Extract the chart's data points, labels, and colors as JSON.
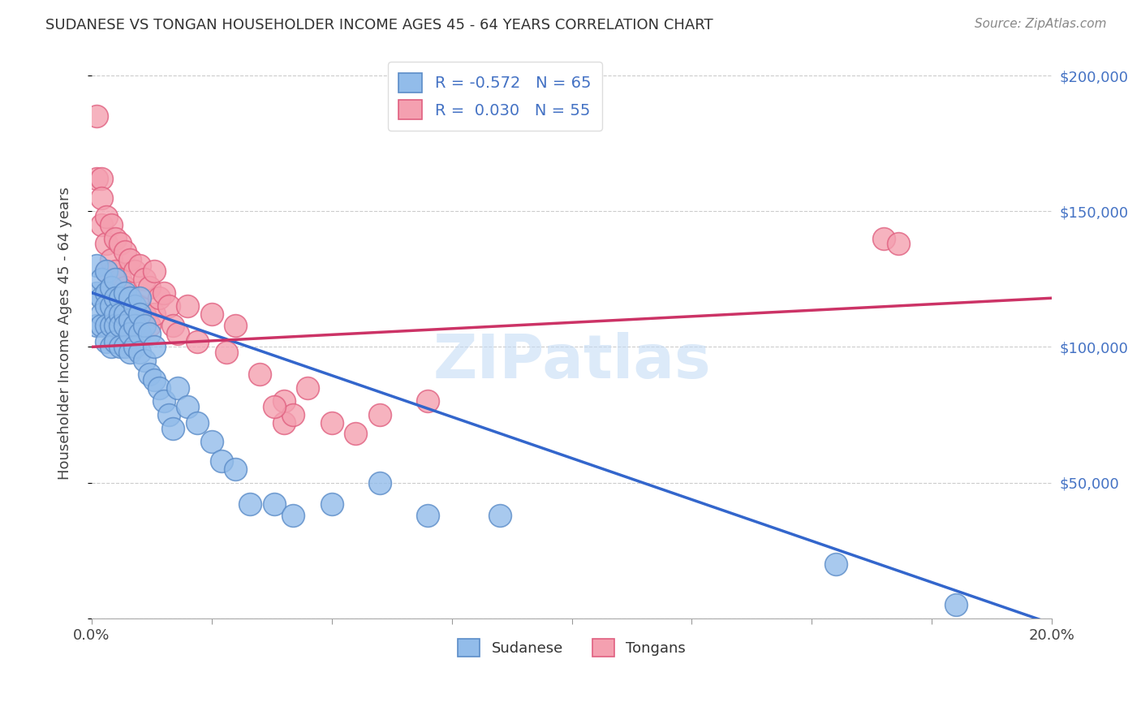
{
  "title": "SUDANESE VS TONGAN HOUSEHOLDER INCOME AGES 45 - 64 YEARS CORRELATION CHART",
  "source": "Source: ZipAtlas.com",
  "ylabel": "Householder Income Ages 45 - 64 years",
  "xlim": [
    0,
    0.2
  ],
  "ylim": [
    0,
    210000
  ],
  "yticks": [
    0,
    50000,
    100000,
    150000,
    200000
  ],
  "xticks": [
    0.0,
    0.025,
    0.05,
    0.075,
    0.1,
    0.125,
    0.15,
    0.175,
    0.2
  ],
  "xtick_labels": [
    "0.0%",
    "",
    "",
    "",
    "",
    "",
    "",
    "",
    "20.0%"
  ],
  "right_ytick_labels": [
    "$50,000",
    "$100,000",
    "$150,000",
    "$200,000"
  ],
  "right_ytick_vals": [
    50000,
    100000,
    150000,
    200000
  ],
  "watermark": "ZIPatlas",
  "sudanese_color": "#92BCEA",
  "tongan_color": "#F4A0B0",
  "sudanese_edge": "#5B8CC8",
  "tongan_edge": "#E06080",
  "trend_blue": "#3366CC",
  "trend_pink": "#CC3366",
  "sudanese_x": [
    0.001,
    0.001,
    0.001,
    0.002,
    0.002,
    0.002,
    0.002,
    0.003,
    0.003,
    0.003,
    0.003,
    0.003,
    0.004,
    0.004,
    0.004,
    0.004,
    0.005,
    0.005,
    0.005,
    0.005,
    0.005,
    0.006,
    0.006,
    0.006,
    0.006,
    0.007,
    0.007,
    0.007,
    0.007,
    0.008,
    0.008,
    0.008,
    0.008,
    0.009,
    0.009,
    0.009,
    0.01,
    0.01,
    0.01,
    0.01,
    0.011,
    0.011,
    0.012,
    0.012,
    0.013,
    0.013,
    0.014,
    0.015,
    0.016,
    0.017,
    0.018,
    0.02,
    0.022,
    0.025,
    0.027,
    0.03,
    0.033,
    0.038,
    0.042,
    0.05,
    0.06,
    0.07,
    0.085,
    0.155,
    0.18
  ],
  "sudanese_y": [
    130000,
    120000,
    108000,
    125000,
    118000,
    112000,
    108000,
    128000,
    120000,
    115000,
    108000,
    102000,
    122000,
    115000,
    108000,
    100000,
    125000,
    118000,
    112000,
    108000,
    102000,
    118000,
    112000,
    108000,
    100000,
    120000,
    112000,
    108000,
    100000,
    118000,
    110000,
    105000,
    98000,
    115000,
    108000,
    100000,
    118000,
    112000,
    105000,
    98000,
    108000,
    95000,
    105000,
    90000,
    100000,
    88000,
    85000,
    80000,
    75000,
    70000,
    85000,
    78000,
    72000,
    65000,
    58000,
    55000,
    42000,
    42000,
    38000,
    42000,
    50000,
    38000,
    38000,
    20000,
    5000
  ],
  "tongan_x": [
    0.001,
    0.001,
    0.002,
    0.002,
    0.002,
    0.003,
    0.003,
    0.003,
    0.004,
    0.004,
    0.004,
    0.005,
    0.005,
    0.005,
    0.006,
    0.006,
    0.006,
    0.007,
    0.007,
    0.007,
    0.008,
    0.008,
    0.008,
    0.009,
    0.009,
    0.01,
    0.01,
    0.011,
    0.011,
    0.012,
    0.012,
    0.013,
    0.013,
    0.014,
    0.015,
    0.016,
    0.017,
    0.018,
    0.02,
    0.022,
    0.025,
    0.028,
    0.03,
    0.035,
    0.04,
    0.045,
    0.05,
    0.055,
    0.06,
    0.07,
    0.165,
    0.168,
    0.04,
    0.042,
    0.038
  ],
  "tongan_y": [
    185000,
    162000,
    162000,
    155000,
    145000,
    148000,
    138000,
    128000,
    145000,
    132000,
    120000,
    140000,
    128000,
    118000,
    138000,
    125000,
    112000,
    135000,
    122000,
    110000,
    132000,
    118000,
    108000,
    128000,
    115000,
    130000,
    115000,
    125000,
    112000,
    122000,
    108000,
    128000,
    112000,
    118000,
    120000,
    115000,
    108000,
    105000,
    115000,
    102000,
    112000,
    98000,
    108000,
    90000,
    80000,
    85000,
    72000,
    68000,
    75000,
    80000,
    140000,
    138000,
    72000,
    75000,
    78000
  ]
}
